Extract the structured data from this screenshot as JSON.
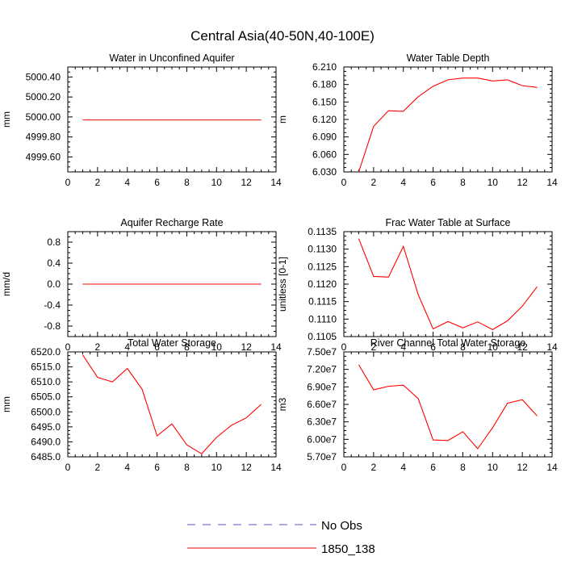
{
  "figure_title": "Central Asia(40-50N,40-100E)",
  "legend": {
    "items": [
      {
        "label": "No Obs",
        "color": "#5555cc",
        "dash": true
      },
      {
        "label": "1850_138",
        "color": "#ff0000",
        "dash": false
      }
    ]
  },
  "chart_data": [
    {
      "type": "line",
      "title": "Water in Unconfined Aquifer",
      "xlabel": "",
      "ylabel": "mm",
      "xlim": [
        0,
        14
      ],
      "ylim": [
        4999.45,
        5000.5
      ],
      "xticks": [
        0,
        2,
        4,
        6,
        8,
        10,
        12,
        14
      ],
      "yticks": [
        4999.6,
        4999.8,
        5000.0,
        5000.2,
        5000.4
      ],
      "yticklabels": [
        "4999.60",
        "4999.80",
        "5000.00",
        "5000.20",
        "5000.40"
      ],
      "series": [
        {
          "name": "1850_138",
          "color": "#ff0000",
          "x": [
            1,
            2,
            3,
            4,
            5,
            6,
            7,
            8,
            9,
            10,
            11,
            12,
            13
          ],
          "y": [
            4999.97,
            4999.97,
            4999.97,
            4999.97,
            4999.97,
            4999.97,
            4999.97,
            4999.97,
            4999.97,
            4999.97,
            4999.97,
            4999.97,
            4999.97
          ]
        }
      ]
    },
    {
      "type": "line",
      "title": "Water Table Depth",
      "xlabel": "",
      "ylabel": "m",
      "xlim": [
        0,
        14
      ],
      "ylim": [
        6.03,
        6.21
      ],
      "xticks": [
        0,
        2,
        4,
        6,
        8,
        10,
        12,
        14
      ],
      "yticks": [
        6.03,
        6.06,
        6.09,
        6.12,
        6.15,
        6.18,
        6.21
      ],
      "yticklabels": [
        "6.030",
        "6.060",
        "6.090",
        "6.120",
        "6.150",
        "6.180",
        "6.210"
      ],
      "series": [
        {
          "name": "1850_138",
          "color": "#ff0000",
          "x": [
            1,
            2,
            3,
            4,
            5,
            6,
            7,
            8,
            9,
            10,
            11,
            12,
            13
          ],
          "y": [
            6.03,
            6.108,
            6.135,
            6.134,
            6.159,
            6.177,
            6.188,
            6.191,
            6.191,
            6.186,
            6.188,
            6.178,
            6.175
          ]
        }
      ]
    },
    {
      "type": "line",
      "title": "Aquifer Recharge Rate",
      "xlabel": "",
      "ylabel": "mm/d",
      "xlim": [
        0,
        14
      ],
      "ylim": [
        -1.0,
        1.0
      ],
      "xticks": [
        0,
        2,
        4,
        6,
        8,
        10,
        12,
        14
      ],
      "yticks": [
        -0.8,
        -0.4,
        0.0,
        0.4,
        0.8
      ],
      "yticklabels": [
        "-0.8",
        "-0.4",
        "0.0",
        "0.4",
        "0.8"
      ],
      "series": [
        {
          "name": "1850_138",
          "color": "#ff0000",
          "x": [
            1,
            2,
            3,
            4,
            5,
            6,
            7,
            8,
            9,
            10,
            11,
            12,
            13
          ],
          "y": [
            0,
            0,
            0,
            0,
            0,
            0,
            0,
            0,
            0,
            0,
            0,
            0,
            0
          ]
        }
      ]
    },
    {
      "type": "line",
      "title": "Frac Water Table at Surface",
      "xlabel": "",
      "ylabel": "unitless [0-1]",
      "xlim": [
        0,
        14
      ],
      "ylim": [
        0.1105,
        0.1135
      ],
      "xticks": [
        0,
        2,
        4,
        6,
        8,
        10,
        12,
        14
      ],
      "yticks": [
        0.1105,
        0.111,
        0.1115,
        0.112,
        0.1125,
        0.113,
        0.1135
      ],
      "yticklabels": [
        "0.1105",
        "0.1110",
        "0.1115",
        "0.1120",
        "0.1125",
        "0.1130",
        "0.1135"
      ],
      "series": [
        {
          "name": "1850_138",
          "color": "#ff0000",
          "x": [
            1,
            2,
            3,
            4,
            5,
            6,
            7,
            8,
            9,
            10,
            11,
            12,
            13
          ],
          "y": [
            0.1133,
            0.11222,
            0.1122,
            0.11308,
            0.1117,
            0.11072,
            0.11093,
            0.11075,
            0.11092,
            0.1107,
            0.11095,
            0.11137,
            0.11193
          ]
        }
      ]
    },
    {
      "type": "line",
      "title": "Total Water Storage",
      "xlabel": "",
      "ylabel": "mm",
      "xlim": [
        0,
        14
      ],
      "ylim": [
        6485.0,
        6520.0
      ],
      "xticks": [
        0,
        2,
        4,
        6,
        8,
        10,
        12,
        14
      ],
      "yticks": [
        6485,
        6490,
        6495,
        6500,
        6505,
        6510,
        6515,
        6520
      ],
      "yticklabels": [
        "6485.0",
        "6490.0",
        "6495.0",
        "6500.0",
        "6505.0",
        "6510.0",
        "6515.0",
        "6520.0"
      ],
      "series": [
        {
          "name": "1850_138",
          "color": "#ff0000",
          "x": [
            1,
            2,
            3,
            4,
            5,
            6,
            7,
            8,
            9,
            10,
            11,
            12,
            13
          ],
          "y": [
            6519.0,
            6511.5,
            6510.0,
            6514.5,
            6507.5,
            6492.0,
            6496.0,
            6489.0,
            6486.0,
            6491.5,
            6495.5,
            6498.0,
            6502.5
          ]
        }
      ]
    },
    {
      "type": "line",
      "title": "River Channel Total Water Storage",
      "xlabel": "",
      "ylabel": "m3",
      "xlim": [
        0,
        14
      ],
      "ylim": [
        57000000,
        75000000
      ],
      "xticks": [
        0,
        2,
        4,
        6,
        8,
        10,
        12,
        14
      ],
      "yticks": [
        57000000,
        60000000,
        63000000,
        66000000,
        69000000,
        72000000,
        75000000
      ],
      "yticklabels": [
        "5.70e7",
        "6.00e7",
        "6.30e7",
        "6.60e7",
        "6.90e7",
        "7.20e7",
        "7.50e7"
      ],
      "series": [
        {
          "name": "1850_138",
          "color": "#ff0000",
          "x": [
            1,
            2,
            3,
            4,
            5,
            6,
            7,
            8,
            9,
            10,
            11,
            12,
            13
          ],
          "y": [
            72800000,
            68500000,
            69100000,
            69300000,
            67000000,
            59900000,
            59800000,
            61300000,
            58400000,
            62000000,
            66200000,
            66800000,
            64000000
          ]
        }
      ]
    }
  ]
}
